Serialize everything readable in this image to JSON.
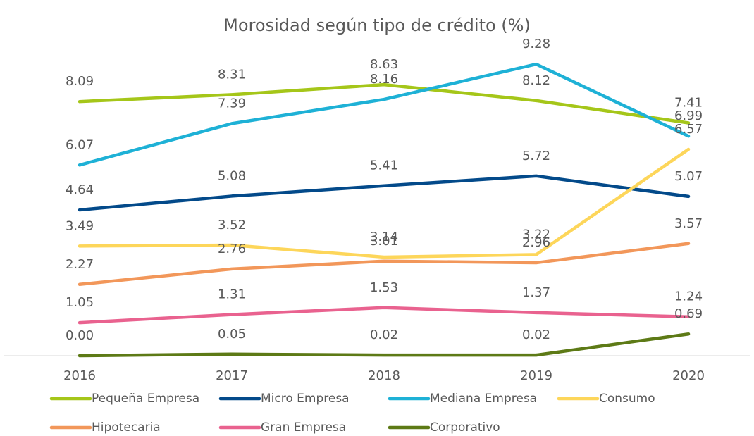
{
  "chart_data": {
    "type": "line",
    "title": "Morosidad según tipo de crédito (%)",
    "categories": [
      "2016",
      "2017",
      "2018",
      "2019",
      "2020"
    ],
    "ylim": [
      0,
      10
    ],
    "series": [
      {
        "name": "Pequeña Empresa",
        "color": "#a5c619",
        "values": [
          8.09,
          8.31,
          8.63,
          8.12,
          7.41
        ]
      },
      {
        "name": "Micro Empresa",
        "color": "#034a8a",
        "values": [
          4.64,
          5.08,
          5.41,
          5.72,
          5.07
        ]
      },
      {
        "name": "Mediana Empresa",
        "color": "#1eb1d6",
        "values": [
          6.07,
          7.39,
          8.16,
          9.28,
          6.99
        ]
      },
      {
        "name": "Consumo",
        "color": "#fdd65a",
        "values": [
          3.49,
          3.52,
          3.14,
          3.22,
          6.57
        ]
      },
      {
        "name": "Hipotecaria",
        "color": "#f2975a",
        "values": [
          2.27,
          2.76,
          3.01,
          2.96,
          3.57
        ]
      },
      {
        "name": "Gran Empresa",
        "color": "#e9628f",
        "values": [
          1.05,
          1.31,
          1.53,
          1.37,
          1.24
        ]
      },
      {
        "name": "Corporativo",
        "color": "#5d7a16",
        "values": [
          0,
          0.05,
          0.02,
          0.02,
          0.69
        ],
        "value_labels": [
          "0.00",
          "0.05",
          "0.02",
          "0.02",
          "0.69"
        ]
      }
    ]
  }
}
